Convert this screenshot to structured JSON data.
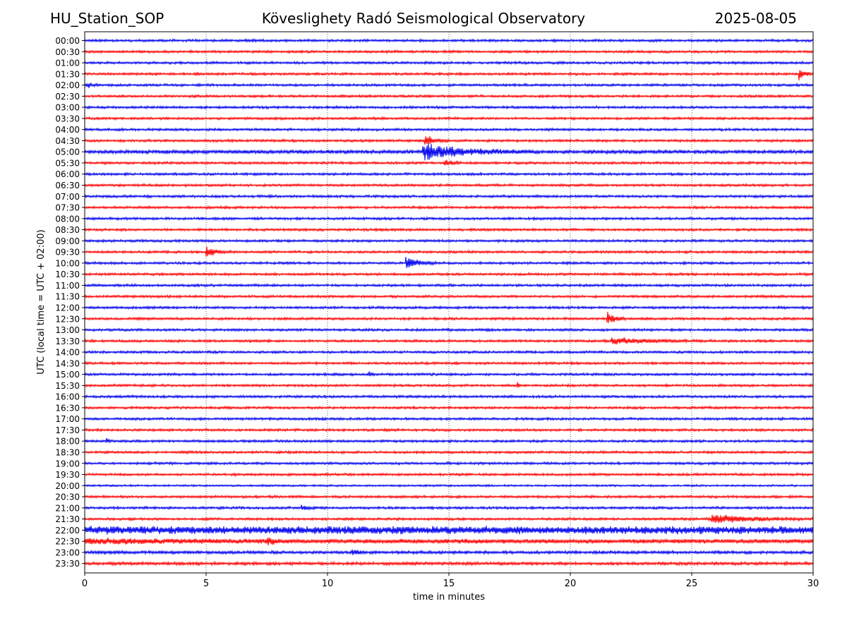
{
  "header": {
    "station": "HU_Station_SOP",
    "observatory": "Köveslighety Radó Seismological Observatory",
    "date": "2025-08-05"
  },
  "chart_data": {
    "type": "line",
    "title": "Köveslighety Radó Seismological Observatory",
    "xlabel": "time in minutes",
    "ylabel": "UTC (local time = UTC + 02:00)",
    "xlim": [
      0,
      30
    ],
    "xticks": [
      0,
      5,
      10,
      15,
      20,
      25,
      30
    ],
    "grid": "vertical dotted at x ticks",
    "colors": {
      "even_row": "#0000ee",
      "odd_row": "#ff0000"
    },
    "rows": [
      "00:00",
      "00:30",
      "01:00",
      "01:30",
      "02:00",
      "02:30",
      "03:00",
      "03:30",
      "04:00",
      "04:30",
      "05:00",
      "05:30",
      "06:00",
      "06:30",
      "07:00",
      "07:30",
      "08:00",
      "08:30",
      "09:00",
      "09:30",
      "10:00",
      "10:30",
      "11:00",
      "11:30",
      "12:00",
      "12:30",
      "13:00",
      "13:30",
      "14:00",
      "14:30",
      "15:00",
      "15:30",
      "16:00",
      "16:30",
      "17:00",
      "17:30",
      "18:00",
      "18:30",
      "19:00",
      "19:30",
      "20:00",
      "20:30",
      "21:00",
      "21:30",
      "22:00",
      "22:30",
      "23:00",
      "23:30"
    ],
    "row_noise": [
      2,
      2,
      2,
      2,
      2,
      2,
      2,
      2,
      2,
      2,
      3,
      2,
      2,
      2,
      2,
      2,
      2,
      2,
      2,
      2,
      2,
      2,
      2,
      2,
      2,
      2,
      2,
      2,
      2,
      2,
      2,
      2,
      2,
      2,
      2,
      2,
      2,
      2,
      2,
      2,
      1.6,
      2,
      2,
      2,
      4.5,
      3.5,
      2.5,
      2.5
    ],
    "events": [
      {
        "row": "01:30",
        "minute": 29.4,
        "duration": 0.6,
        "amplitude": 11
      },
      {
        "row": "02:00",
        "minute": 0.1,
        "duration": 0.4,
        "amplitude": 5
      },
      {
        "row": "04:30",
        "minute": 14.0,
        "duration": 1.0,
        "amplitude": 9
      },
      {
        "row": "05:00",
        "minute": 13.9,
        "duration": 4.5,
        "amplitude": 13
      },
      {
        "row": "05:30",
        "minute": 14.8,
        "duration": 0.8,
        "amplitude": 5
      },
      {
        "row": "09:30",
        "minute": 5.0,
        "duration": 1.2,
        "amplitude": 8
      },
      {
        "row": "10:00",
        "minute": 13.2,
        "duration": 1.3,
        "amplitude": 11
      },
      {
        "row": "12:30",
        "minute": 21.5,
        "duration": 0.9,
        "amplitude": 10
      },
      {
        "row": "13:30",
        "minute": 21.7,
        "duration": 4.2,
        "amplitude": 5
      },
      {
        "row": "15:00",
        "minute": 11.7,
        "duration": 0.3,
        "amplitude": 4
      },
      {
        "row": "15:30",
        "minute": 17.8,
        "duration": 0.2,
        "amplitude": 5
      },
      {
        "row": "18:00",
        "minute": 0.9,
        "duration": 0.3,
        "amplitude": 4
      },
      {
        "row": "21:00",
        "minute": 8.9,
        "duration": 0.8,
        "amplitude": 4
      },
      {
        "row": "21:30",
        "minute": 25.8,
        "duration": 4.2,
        "amplitude": 7
      },
      {
        "row": "22:00",
        "minute": 0.0,
        "duration": 30,
        "amplitude": 2
      },
      {
        "row": "22:30",
        "minute": 0.0,
        "duration": 9,
        "amplitude": 3
      },
      {
        "row": "22:30",
        "minute": 7.5,
        "duration": 0.7,
        "amplitude": 5
      },
      {
        "row": "23:00",
        "minute": 11.0,
        "duration": 0.6,
        "amplitude": 5
      }
    ]
  }
}
